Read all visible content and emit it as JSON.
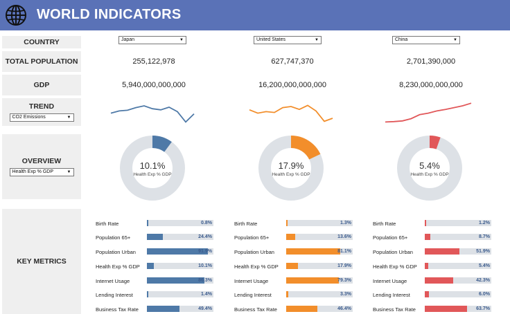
{
  "header": {
    "title": "WORLD INDICATORS",
    "icon": "globe-icon"
  },
  "labels": {
    "country": "COUNTRY",
    "total_population": "TOTAL POPULATION",
    "gdp": "GDP",
    "trend": "TREND",
    "overview": "OVERVIEW",
    "key_metrics": "KEY METRICS"
  },
  "trend_select": "CO2 Emissions",
  "overview_select": "Health Exp % GDP",
  "metric_names": [
    "Birth Rate",
    "Population 65+",
    "Population Urban",
    "Health Exp % GDP",
    "Internet Usage",
    "Lending Interest",
    "Business Tax Rate"
  ],
  "countries": [
    {
      "name": "Japan",
      "color": "#4e79a7",
      "population": "255,122,978",
      "gdp": "5,940,000,000,000",
      "overview_pct": "10.1%",
      "overview_label": "Health Exp % GDP",
      "overview_value": 10.1,
      "trend": [
        0.55,
        0.45,
        0.42,
        0.3,
        0.22,
        0.35,
        0.4,
        0.28,
        0.48,
        0.95,
        0.58
      ],
      "metrics": [
        "0.8%",
        "24.4%",
        "91.9%",
        "10.1%",
        "86.3%",
        "1.4%",
        "49.4%"
      ],
      "metric_values": [
        0.8,
        24.4,
        91.9,
        10.1,
        86.3,
        1.4,
        49.4
      ]
    },
    {
      "name": "United States",
      "color": "#f28e2b",
      "population": "627,747,370",
      "gdp": "16,200,000,000,000",
      "overview_pct": "17.9%",
      "overview_label": "Health Exp % GDP",
      "overview_value": 17.9,
      "trend": [
        0.4,
        0.55,
        0.48,
        0.52,
        0.3,
        0.25,
        0.38,
        0.2,
        0.45,
        0.92,
        0.78
      ],
      "metrics": [
        "1.3%",
        "13.6%",
        "81.1%",
        "17.9%",
        "79.3%",
        "3.3%",
        "46.4%"
      ],
      "metric_values": [
        1.3,
        13.6,
        81.1,
        17.9,
        79.3,
        3.3,
        46.4
      ]
    },
    {
      "name": "China",
      "color": "#e15759",
      "population": "2,701,390,000",
      "gdp": "8,230,000,000,000",
      "overview_pct": "5.4%",
      "overview_label": "Health Exp % GDP",
      "overview_value": 5.4,
      "trend": [
        0.95,
        0.93,
        0.9,
        0.8,
        0.62,
        0.55,
        0.45,
        0.38,
        0.3,
        0.22,
        0.1
      ],
      "metrics": [
        "1.2%",
        "8.7%",
        "51.9%",
        "5.4%",
        "42.3%",
        "6.0%",
        "63.7%"
      ],
      "metric_values": [
        1.2,
        8.7,
        51.9,
        5.4,
        42.3,
        6.0,
        63.7
      ]
    }
  ]
}
